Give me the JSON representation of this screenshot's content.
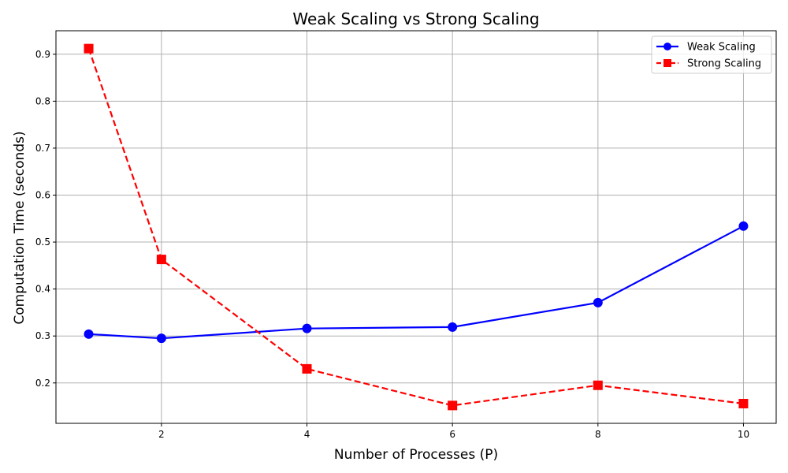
{
  "chart_data": {
    "type": "line",
    "title": "Weak Scaling vs Strong Scaling",
    "xlabel": "Number of Processes (P)",
    "ylabel": "Computation Time (seconds)",
    "x": [
      1,
      2,
      4,
      6,
      8,
      10
    ],
    "xticks": [
      2,
      4,
      6,
      8,
      10
    ],
    "yticks": [
      0.2,
      0.3,
      0.4,
      0.5,
      0.6,
      0.7,
      0.8,
      0.9
    ],
    "xlim": [
      0.55,
      10.45
    ],
    "ylim": [
      0.114,
      0.95
    ],
    "grid": true,
    "legend_position": "top-right",
    "series": [
      {
        "name": "Weak Scaling",
        "values": [
          0.304,
          0.295,
          0.316,
          0.319,
          0.371,
          0.534
        ],
        "color": "#0000ff",
        "line_style": "solid",
        "marker": "circle"
      },
      {
        "name": "Strong Scaling",
        "values": [
          0.912,
          0.463,
          0.23,
          0.152,
          0.195,
          0.156
        ],
        "color": "#ff0000",
        "line_style": "dashed",
        "marker": "square"
      }
    ]
  }
}
